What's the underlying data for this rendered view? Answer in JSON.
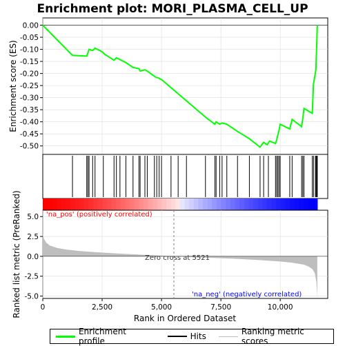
{
  "chart_data": {
    "type": "line",
    "title": "Enrichment plot: MORI_PLASMA_CELL_UP",
    "top_panel": {
      "ylabel": "Enrichment score (ES)",
      "ylim": [
        -0.535,
        0.03
      ],
      "yticks": [
        "0.00",
        "-0.05",
        "-0.10",
        "-0.15",
        "-0.20",
        "-0.25",
        "-0.30",
        "-0.35",
        "-0.40",
        "-0.45",
        "-0.50"
      ],
      "ytick_values": [
        0.0,
        -0.05,
        -0.1,
        -0.15,
        -0.2,
        -0.25,
        -0.3,
        -0.35,
        -0.4,
        -0.45,
        -0.5
      ],
      "series_name": "Enrichment profile",
      "color": "#00ff00",
      "x": [
        0,
        1250,
        1850,
        1900,
        1950,
        2100,
        2200,
        2500,
        2600,
        3000,
        3100,
        3200,
        3500,
        3800,
        4050,
        4100,
        4300,
        4400,
        4750,
        4900,
        5000,
        6900,
        7250,
        7300,
        7450,
        7550,
        7750,
        8200,
        8700,
        9150,
        9300,
        9450,
        9550,
        9800,
        9850,
        9900,
        9950,
        10000,
        10400,
        10450,
        10500,
        10900,
        10950,
        11000,
        11350,
        11400,
        11500,
        11530,
        11560
      ],
      "y": [
        0.0,
        -0.125,
        -0.128,
        -0.115,
        -0.1,
        -0.105,
        -0.095,
        -0.11,
        -0.12,
        -0.145,
        -0.135,
        -0.14,
        -0.155,
        -0.175,
        -0.18,
        -0.19,
        -0.185,
        -0.19,
        -0.215,
        -0.22,
        -0.225,
        -0.385,
        -0.41,
        -0.4,
        -0.41,
        -0.405,
        -0.41,
        -0.44,
        -0.47,
        -0.505,
        -0.485,
        -0.495,
        -0.48,
        -0.49,
        -0.475,
        -0.455,
        -0.435,
        -0.41,
        -0.43,
        -0.41,
        -0.39,
        -0.42,
        -0.385,
        -0.345,
        -0.365,
        -0.245,
        -0.185,
        -0.1,
        0.0
      ],
      "zero_line": 0
    },
    "hits_panel": {
      "series_name": "Hits",
      "hit_positions": [
        1250,
        1850,
        1900,
        1950,
        2100,
        2200,
        2550,
        3000,
        3100,
        3250,
        3500,
        3800,
        4050,
        4100,
        4300,
        4400,
        4700,
        4800,
        4900,
        5000,
        5400,
        5700,
        6050,
        6850,
        7250,
        7300,
        7450,
        7550,
        7750,
        8200,
        8700,
        9150,
        9300,
        9500,
        9800,
        9850,
        9900,
        9950,
        10000,
        10400,
        10500,
        10900,
        10950,
        11000,
        11350,
        11400,
        11480,
        11510,
        11540,
        11560
      ]
    },
    "ranking_panel": {
      "ylabel": "Ranked list metric (PreRanked)",
      "ylim": [
        -5.3,
        5.8
      ],
      "yticks": [
        "5.0",
        "2.5",
        "0.0",
        "-2.5",
        "-5.0"
      ],
      "ytick_values": [
        5.0,
        2.5,
        0.0,
        -2.5,
        -5.0
      ],
      "series_name": "Ranking metric scores",
      "color": "#bebebe",
      "x": [
        0,
        50,
        150,
        300,
        600,
        1000,
        1500,
        2000,
        3000,
        4000,
        5000,
        5521,
        6000,
        7000,
        8000,
        9000,
        10000,
        10500,
        11000,
        11200,
        11350,
        11450,
        11520,
        11560
      ],
      "y": [
        2.9,
        2.2,
        1.7,
        1.35,
        1.05,
        0.85,
        0.68,
        0.56,
        0.38,
        0.22,
        0.08,
        0.0,
        -0.06,
        -0.18,
        -0.3,
        -0.45,
        -0.65,
        -0.8,
        -1.05,
        -1.3,
        -1.6,
        -2.1,
        -3.2,
        -5.1
      ],
      "zero_cross_label": "Zero cross at 5521",
      "zero_cross_x": 5521,
      "pos_label": "'na_pos' (positively correlated)",
      "neg_label": "'na_neg' (negatively correlated)",
      "pos_color": "#ff0000",
      "neg_color": "#0000ff"
    },
    "xlabel": "Rank in Ordered Dataset",
    "xlim": [
      0,
      12000
    ],
    "xticks": [
      "0",
      "2,500",
      "5,000",
      "7,500",
      "10,000"
    ],
    "xtick_values": [
      0,
      2500,
      5000,
      7500,
      10000
    ],
    "n_genes": 11560,
    "legend": [
      "Enrichment profile",
      "Hits",
      "Ranking metric scores"
    ]
  }
}
